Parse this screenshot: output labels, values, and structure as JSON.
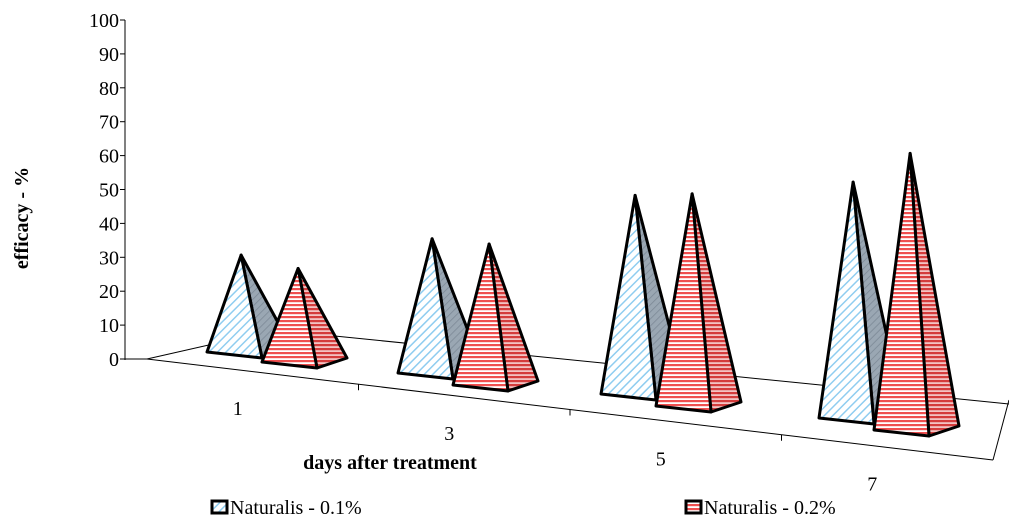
{
  "chart_data": {
    "type": "bar",
    "style": "3d-pyramid",
    "title": "",
    "xlabel": "days after treatment",
    "ylabel": "efficacy - %",
    "categories": [
      "1",
      "3",
      "5",
      "7"
    ],
    "ylim": [
      0,
      100
    ],
    "yticks": [
      "0",
      "10",
      "20",
      "30",
      "40",
      "50",
      "60",
      "70",
      "80",
      "90",
      "100"
    ],
    "grid": false,
    "legend_position": "bottom",
    "series": [
      {
        "name": "Naturalis - 0.1%",
        "values": [
          28,
          39,
          58,
          69
        ],
        "color": "#bfe3f8",
        "hatch": "diagonal",
        "side_color": "#9aa7b3"
      },
      {
        "name": "Naturalis - 0.2%",
        "values": [
          27,
          41,
          62,
          81
        ],
        "color": "#f06a6a",
        "hatch": "horizontal",
        "side_color": "#e05555"
      }
    ]
  }
}
